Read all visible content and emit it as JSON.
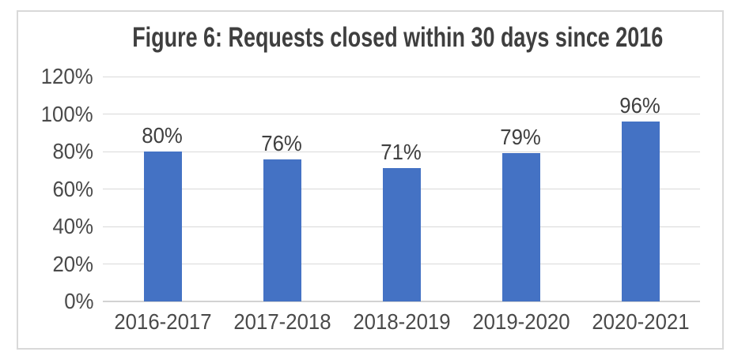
{
  "chart_data": {
    "type": "bar",
    "title": "Figure 6: Requests closed within 30 days since 2016",
    "categories": [
      "2016-2017",
      "2017-2018",
      "2018-2019",
      "2019-2020",
      "2020-2021"
    ],
    "values": [
      80,
      76,
      71,
      79,
      96
    ],
    "data_labels": [
      "80%",
      "76%",
      "71%",
      "79%",
      "96%"
    ],
    "y_ticks": [
      {
        "value": 0,
        "label": "0%"
      },
      {
        "value": 20,
        "label": "20%"
      },
      {
        "value": 40,
        "label": "40%"
      },
      {
        "value": 60,
        "label": "60%"
      },
      {
        "value": 80,
        "label": "80%"
      },
      {
        "value": 100,
        "label": "100%"
      },
      {
        "value": 120,
        "label": "120%"
      }
    ],
    "ylim": [
      0,
      120
    ],
    "xlabel": "",
    "ylabel": "",
    "grid": true,
    "legend": false,
    "colors": {
      "bar": "#4472C4",
      "gridline": "#D9D9D9",
      "axis_line": "#D2D2D2",
      "text": "#4A4A4A",
      "title_text": "#3F3F3F",
      "border": "#D9D9D9",
      "background": "#FFFFFF"
    }
  }
}
